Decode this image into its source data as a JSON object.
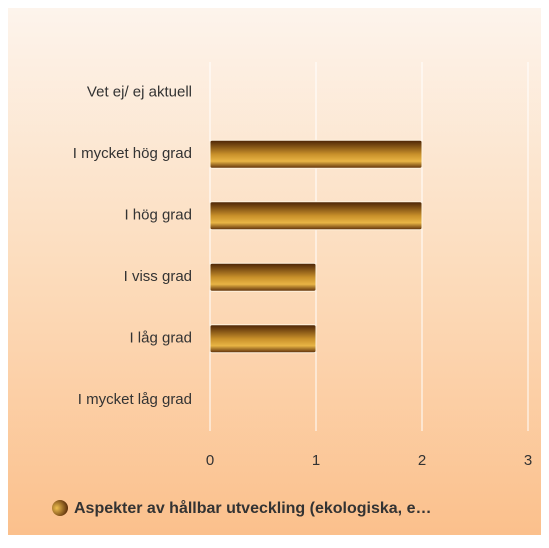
{
  "chart_data": {
    "type": "hbar",
    "categories": [
      "Vet ej/ ej aktuell",
      "I mycket hög grad",
      "I hög grad",
      "I viss grad",
      "I låg grad",
      "I mycket låg grad"
    ],
    "series": [
      {
        "name": "Aspekter av hållbar utveckling (ekologiska, e…",
        "color": "#c8902a",
        "values": [
          0,
          2,
          2,
          1,
          1,
          0
        ]
      }
    ],
    "xlim": [
      0,
      3
    ],
    "xticks": [
      0,
      1,
      2,
      3
    ],
    "grid": true,
    "legend": "bottom"
  }
}
